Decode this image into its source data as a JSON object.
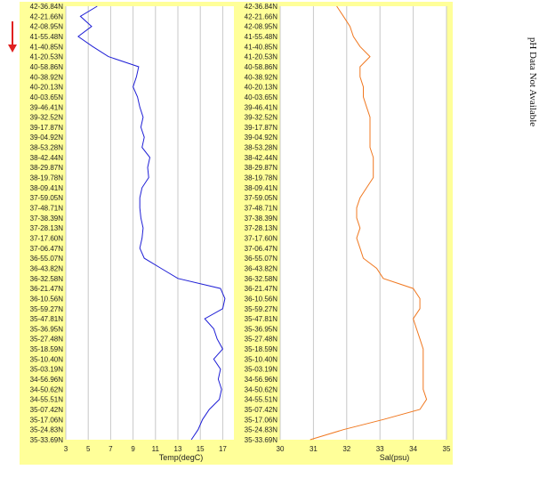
{
  "marker": {
    "icon": "down-arrow-icon",
    "color": "#e02020"
  },
  "side_note": "pH Data Not Available",
  "latitudes": [
    "42-36.84N",
    "42-21.66N",
    "42-08.95N",
    "41-55.48N",
    "41-40.85N",
    "41-20.53N",
    "40-58.86N",
    "40-38.92N",
    "40-20.13N",
    "40-03.65N",
    "39-46.41N",
    "39-32.52N",
    "39-17.87N",
    "39-04.92N",
    "38-53.28N",
    "38-42.44N",
    "38-29.87N",
    "38-19.78N",
    "38-09.41N",
    "37-59.05N",
    "37-48.71N",
    "37-38.39N",
    "37-28.13N",
    "37-17.60N",
    "37-06.47N",
    "36-55.07N",
    "36-43.82N",
    "36-32.58N",
    "36-21.47N",
    "36-10.56N",
    "35-59.27N",
    "35-47.81N",
    "35-36.95N",
    "35-27.48N",
    "35-18.59N",
    "35-10.40N",
    "35-03.19N",
    "34-56.96N",
    "34-50.62N",
    "34-55.51N",
    "35-07.42N",
    "35-17.06N",
    "35-24.83N",
    "35-33.69N"
  ],
  "chart_data": [
    {
      "type": "line",
      "xlabel": "Temp(degC)",
      "ylabel": "",
      "xticks": [
        3,
        5,
        7,
        9,
        11,
        13,
        15,
        17
      ],
      "xlim": [
        3,
        18
      ],
      "color": "#1f1fd6",
      "background": "#ffff99",
      "series": [
        {
          "values": [
            5.8,
            4.3,
            5.3,
            4.1,
            5.4,
            6.8,
            9.5,
            9.3,
            9.0,
            9.4,
            9.6,
            9.9,
            9.7,
            10.0,
            9.8,
            10.5,
            10.3,
            10.4,
            9.8,
            9.6,
            9.6,
            9.7,
            9.9,
            9.8,
            9.6,
            10.0,
            11.5,
            13.0,
            16.8,
            17.2,
            17.0,
            15.4,
            16.2,
            16.5,
            17.0,
            16.2,
            16.8,
            16.6,
            16.9,
            16.7,
            15.8,
            15.2,
            14.8,
            14.2
          ]
        }
      ]
    },
    {
      "type": "line",
      "xlabel": "Sal(psu)",
      "ylabel": "",
      "xticks": [
        30,
        31,
        32,
        33,
        34,
        35
      ],
      "xlim": [
        30,
        35
      ],
      "color": "#f07820",
      "background": "#ffff99",
      "series": [
        {
          "values": [
            31.7,
            31.9,
            32.1,
            32.2,
            32.4,
            32.7,
            32.4,
            32.4,
            32.5,
            32.5,
            32.6,
            32.7,
            32.7,
            32.7,
            32.7,
            32.8,
            32.8,
            32.8,
            32.6,
            32.4,
            32.3,
            32.3,
            32.4,
            32.3,
            32.4,
            32.5,
            32.9,
            33.1,
            34.0,
            34.2,
            34.2,
            34.0,
            34.1,
            34.2,
            34.3,
            34.3,
            34.3,
            34.3,
            34.3,
            34.4,
            34.2,
            33.1,
            31.9,
            30.9
          ]
        }
      ]
    }
  ]
}
